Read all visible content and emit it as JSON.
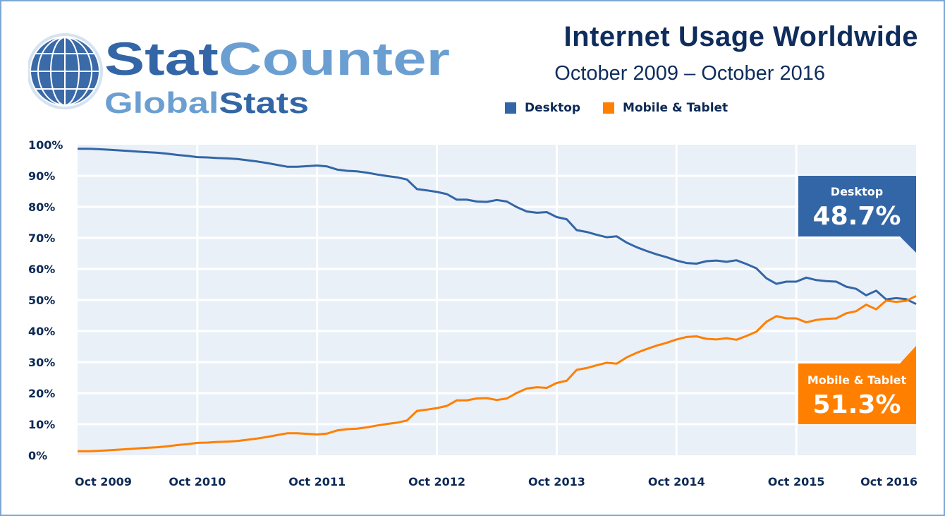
{
  "logo": {
    "text_top": "StatCounter",
    "text_bottom": "GlobalStats"
  },
  "header": {
    "title": "Internet Usage Worldwide",
    "subtitle": "October 2009 – October 2016"
  },
  "legend": [
    {
      "label": "Desktop",
      "color": "#3366a6"
    },
    {
      "label": "Mobile & Tablet",
      "color": "#ff7f00"
    }
  ],
  "callouts": {
    "desktop": {
      "label": "Desktop",
      "value": "48.7%",
      "color": "#3366a6"
    },
    "mobile": {
      "label": "Mobile & Tablet",
      "value": "51.3%",
      "color": "#ff7f00"
    }
  },
  "chart_data": {
    "type": "line",
    "title": "Internet Usage Worldwide",
    "subtitle": "October 2009 – October 2016",
    "xlabel": "",
    "ylabel": "",
    "ylim": [
      0,
      100
    ],
    "grid": true,
    "legend_position": "top-right",
    "y_ticks": [
      "0%",
      "10%",
      "20%",
      "30%",
      "40%",
      "50%",
      "60%",
      "70%",
      "80%",
      "90%",
      "100%"
    ],
    "x_ticks": [
      "Oct 2009",
      "Oct 2010",
      "Oct 2011",
      "Oct 2012",
      "Oct 2013",
      "Oct 2014",
      "Oct 2015",
      "Oct 2016"
    ],
    "x_start": "2009-10",
    "x_end": "2016-10",
    "x_frequency": "monthly",
    "series": [
      {
        "name": "Desktop",
        "color": "#3366a6",
        "values": [
          98.7,
          98.7,
          98.6,
          98.4,
          98.2,
          98.0,
          97.8,
          97.6,
          97.4,
          97.1,
          96.7,
          96.4,
          96.0,
          95.9,
          95.7,
          95.6,
          95.4,
          95.0,
          94.6,
          94.1,
          93.5,
          92.9,
          92.9,
          93.1,
          93.3,
          93.0,
          92.0,
          91.6,
          91.4,
          91.0,
          90.4,
          89.9,
          89.5,
          88.8,
          85.7,
          85.3,
          84.8,
          84.1,
          82.3,
          82.3,
          81.7,
          81.6,
          82.2,
          81.7,
          79.9,
          78.5,
          78.1,
          78.3,
          76.7,
          76.0,
          72.5,
          71.9,
          71.0,
          70.2,
          70.5,
          68.5,
          67.0,
          65.8,
          64.7,
          63.8,
          62.7,
          61.9,
          61.7,
          62.5,
          62.7,
          62.3,
          62.8,
          61.6,
          60.2,
          57.0,
          55.2,
          55.9,
          55.9,
          57.2,
          56.4,
          56.1,
          55.9,
          54.3,
          53.6,
          51.5,
          53.0,
          50.2,
          50.6,
          50.3,
          48.7
        ]
      },
      {
        "name": "Mobile & Tablet",
        "color": "#ff7f00",
        "values": [
          1.3,
          1.3,
          1.4,
          1.6,
          1.8,
          2.0,
          2.2,
          2.4,
          2.6,
          2.9,
          3.3,
          3.6,
          4.0,
          4.1,
          4.3,
          4.4,
          4.6,
          5.0,
          5.4,
          5.9,
          6.5,
          7.1,
          7.1,
          6.9,
          6.7,
          7.0,
          8.0,
          8.4,
          8.6,
          9.0,
          9.6,
          10.1,
          10.5,
          11.2,
          14.3,
          14.7,
          15.2,
          15.9,
          17.7,
          17.7,
          18.3,
          18.4,
          17.8,
          18.3,
          20.1,
          21.5,
          21.9,
          21.7,
          23.3,
          24.0,
          27.5,
          28.1,
          29.0,
          29.8,
          29.5,
          31.5,
          33.0,
          34.2,
          35.3,
          36.2,
          37.3,
          38.1,
          38.3,
          37.5,
          37.3,
          37.7,
          37.2,
          38.4,
          39.8,
          43.0,
          44.8,
          44.1,
          44.1,
          42.8,
          43.6,
          43.9,
          44.1,
          45.7,
          46.4,
          48.5,
          47.0,
          49.8,
          49.4,
          49.7,
          51.3
        ]
      }
    ]
  }
}
